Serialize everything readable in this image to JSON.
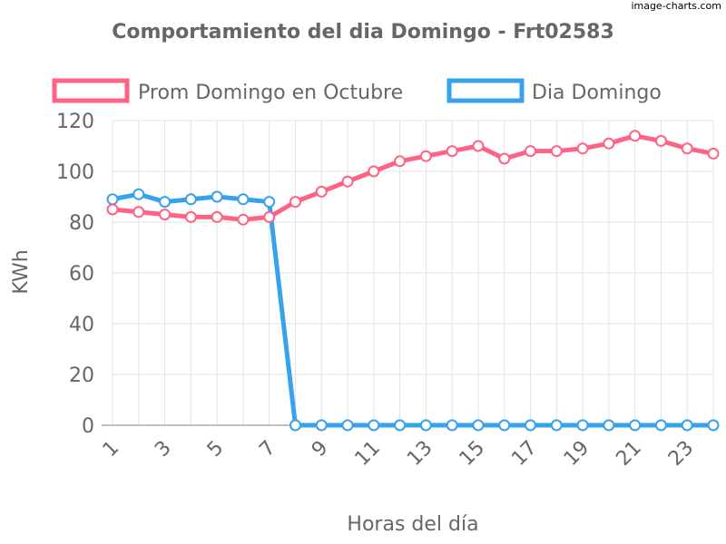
{
  "watermark": "image-charts.com",
  "chart_data": {
    "type": "line",
    "title": "Comportamiento del dia Domingo - Frt02583",
    "xlabel": "Horas del día",
    "ylabel": "KWh",
    "x": [
      1,
      2,
      3,
      4,
      5,
      6,
      7,
      8,
      9,
      10,
      11,
      12,
      13,
      14,
      15,
      16,
      17,
      18,
      19,
      20,
      21,
      22,
      23,
      24
    ],
    "x_tick_labels": [
      "1",
      "3",
      "5",
      "7",
      "9",
      "11",
      "13",
      "15",
      "17",
      "19",
      "21",
      "23"
    ],
    "y_tick_labels": [
      "0",
      "20",
      "40",
      "60",
      "80",
      "100",
      "120"
    ],
    "ylim": [
      0,
      120
    ],
    "grid": true,
    "legend_position": "top",
    "series": [
      {
        "name": "Prom Domingo en Octubre",
        "color": "#ff6384",
        "values": [
          85,
          84,
          83,
          82,
          82,
          81,
          82,
          88,
          92,
          96,
          100,
          104,
          106,
          108,
          110,
          105,
          108,
          108,
          109,
          111,
          114,
          112,
          109,
          107
        ]
      },
      {
        "name": "Dia Domingo",
        "color": "#36a2eb",
        "values": [
          89,
          91,
          88,
          89,
          90,
          89,
          88,
          0,
          0,
          0,
          0,
          0,
          0,
          0,
          0,
          0,
          0,
          0,
          0,
          0,
          0,
          0,
          0,
          0
        ]
      }
    ]
  }
}
